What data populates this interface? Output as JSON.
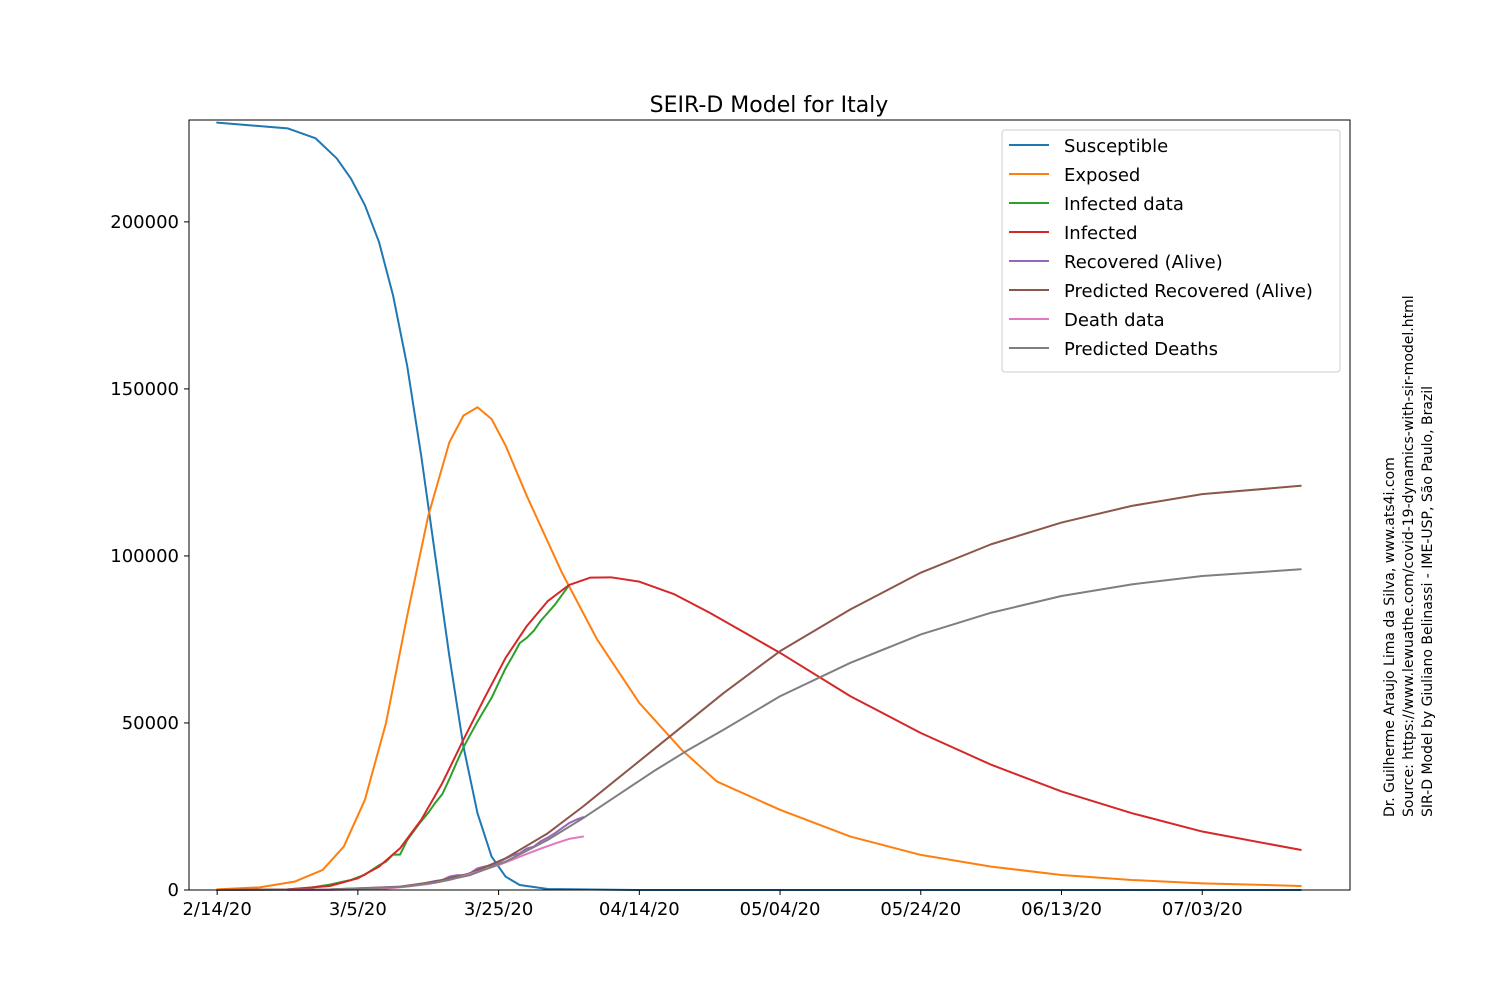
{
  "chart_data": {
    "type": "line",
    "title": "SEIR-D Model for Italy",
    "xlabel": "",
    "ylabel": "",
    "x_start": "2020-02-14",
    "x_end": "2020-07-17",
    "xlim": [
      "2020-02-10",
      "2020-07-24"
    ],
    "ylim": [
      0,
      230500
    ],
    "x_ticks": [
      {
        "date": "2020-02-14",
        "label": "2/14/20"
      },
      {
        "date": "2020-03-05",
        "label": "3/5/20"
      },
      {
        "date": "2020-03-25",
        "label": "3/25/20"
      },
      {
        "date": "2020-04-14",
        "label": "04/14/20"
      },
      {
        "date": "2020-05-04",
        "label": "05/04/20"
      },
      {
        "date": "2020-05-24",
        "label": "05/24/20"
      },
      {
        "date": "2020-06-13",
        "label": "06/13/20"
      },
      {
        "date": "2020-07-03",
        "label": "07/03/20"
      }
    ],
    "y_ticks": [
      {
        "value": 0,
        "label": "0"
      },
      {
        "value": 50000,
        "label": "50000"
      },
      {
        "value": 100000,
        "label": "100000"
      },
      {
        "value": 150000,
        "label": "150000"
      },
      {
        "value": 200000,
        "label": "200000"
      }
    ],
    "grid": false,
    "legend_position": "top-right",
    "series": [
      {
        "name": "Susceptible",
        "color": "#1f77b4",
        "points": [
          [
            "2020-02-14",
            229700
          ],
          [
            "2020-02-24",
            228000
          ],
          [
            "2020-02-28",
            225000
          ],
          [
            "2020-03-02",
            219000
          ],
          [
            "2020-03-04",
            213000
          ],
          [
            "2020-03-06",
            205000
          ],
          [
            "2020-03-08",
            194000
          ],
          [
            "2020-03-10",
            178000
          ],
          [
            "2020-03-12",
            157000
          ],
          [
            "2020-03-14",
            130000
          ],
          [
            "2020-03-16",
            100000
          ],
          [
            "2020-03-18",
            70000
          ],
          [
            "2020-03-20",
            43000
          ],
          [
            "2020-03-22",
            23000
          ],
          [
            "2020-03-24",
            10000
          ],
          [
            "2020-03-26",
            4000
          ],
          [
            "2020-03-28",
            1500
          ],
          [
            "2020-04-01",
            300
          ],
          [
            "2020-04-14",
            0
          ],
          [
            "2020-07-17",
            0
          ]
        ]
      },
      {
        "name": "Exposed",
        "color": "#ff7f0e",
        "points": [
          [
            "2020-02-14",
            200
          ],
          [
            "2020-02-20",
            800
          ],
          [
            "2020-02-25",
            2500
          ],
          [
            "2020-02-29",
            6000
          ],
          [
            "2020-03-03",
            13000
          ],
          [
            "2020-03-06",
            27000
          ],
          [
            "2020-03-09",
            50000
          ],
          [
            "2020-03-12",
            82000
          ],
          [
            "2020-03-15",
            112000
          ],
          [
            "2020-03-18",
            134000
          ],
          [
            "2020-03-20",
            142000
          ],
          [
            "2020-03-22",
            144500
          ],
          [
            "2020-03-24",
            141000
          ],
          [
            "2020-03-26",
            133000
          ],
          [
            "2020-03-29",
            118000
          ],
          [
            "2020-04-03",
            95000
          ],
          [
            "2020-04-08",
            75000
          ],
          [
            "2020-04-14",
            56000
          ],
          [
            "2020-04-20",
            42000
          ],
          [
            "2020-04-25",
            32500
          ],
          [
            "2020-05-04",
            24000
          ],
          [
            "2020-05-14",
            16000
          ],
          [
            "2020-05-24",
            10500
          ],
          [
            "2020-06-03",
            7000
          ],
          [
            "2020-06-13",
            4500
          ],
          [
            "2020-06-23",
            3000
          ],
          [
            "2020-07-03",
            2000
          ],
          [
            "2020-07-17",
            1200
          ]
        ]
      },
      {
        "name": "Infected data",
        "color": "#2ca02c",
        "points": [
          [
            "2020-02-24",
            200
          ],
          [
            "2020-02-27",
            600
          ],
          [
            "2020-03-01",
            1600
          ],
          [
            "2020-03-04",
            3000
          ],
          [
            "2020-03-06",
            4600
          ],
          [
            "2020-03-08",
            7400
          ],
          [
            "2020-03-09",
            8500
          ],
          [
            "2020-03-10",
            10600
          ],
          [
            "2020-03-11",
            10600
          ],
          [
            "2020-03-12",
            14900
          ],
          [
            "2020-03-13",
            17800
          ],
          [
            "2020-03-14",
            20600
          ],
          [
            "2020-03-15",
            23100
          ],
          [
            "2020-03-16",
            26100
          ],
          [
            "2020-03-17",
            28700
          ],
          [
            "2020-03-18",
            33200
          ],
          [
            "2020-03-19",
            38000
          ],
          [
            "2020-03-20",
            42700
          ],
          [
            "2020-03-21",
            46600
          ],
          [
            "2020-03-22",
            50400
          ],
          [
            "2020-03-23",
            54000
          ],
          [
            "2020-03-24",
            57500
          ],
          [
            "2020-03-25",
            62000
          ],
          [
            "2020-03-26",
            66400
          ],
          [
            "2020-03-27",
            70000
          ],
          [
            "2020-03-28",
            73900
          ],
          [
            "2020-03-29",
            75500
          ],
          [
            "2020-03-30",
            77600
          ],
          [
            "2020-03-31",
            80600
          ],
          [
            "2020-04-01",
            83000
          ],
          [
            "2020-04-02",
            85400
          ],
          [
            "2020-04-03",
            88300
          ],
          [
            "2020-04-04",
            91200
          ]
        ]
      },
      {
        "name": "Infected",
        "color": "#d62728",
        "points": [
          [
            "2020-02-14",
            0
          ],
          [
            "2020-02-24",
            200
          ],
          [
            "2020-03-01",
            1200
          ],
          [
            "2020-03-05",
            3500
          ],
          [
            "2020-03-08",
            7000
          ],
          [
            "2020-03-11",
            12500
          ],
          [
            "2020-03-14",
            21000
          ],
          [
            "2020-03-17",
            32000
          ],
          [
            "2020-03-20",
            45000
          ],
          [
            "2020-03-23",
            57500
          ],
          [
            "2020-03-26",
            69500
          ],
          [
            "2020-03-29",
            79000
          ],
          [
            "2020-04-01",
            86500
          ],
          [
            "2020-04-04",
            91300
          ],
          [
            "2020-04-07",
            93500
          ],
          [
            "2020-04-10",
            93600
          ],
          [
            "2020-04-14",
            92300
          ],
          [
            "2020-04-19",
            88500
          ],
          [
            "2020-04-24",
            83000
          ],
          [
            "2020-04-29",
            77000
          ],
          [
            "2020-05-04",
            71000
          ],
          [
            "2020-05-14",
            58000
          ],
          [
            "2020-05-24",
            47000
          ],
          [
            "2020-06-03",
            37500
          ],
          [
            "2020-06-13",
            29500
          ],
          [
            "2020-06-23",
            23000
          ],
          [
            "2020-07-03",
            17500
          ],
          [
            "2020-07-17",
            12000
          ]
        ]
      },
      {
        "name": "Recovered (Alive)",
        "color": "#9467bd",
        "points": [
          [
            "2020-02-24",
            0
          ],
          [
            "2020-03-01",
            80
          ],
          [
            "2020-03-05",
            400
          ],
          [
            "2020-03-09",
            700
          ],
          [
            "2020-03-12",
            1100
          ],
          [
            "2020-03-14",
            1800
          ],
          [
            "2020-03-16",
            2700
          ],
          [
            "2020-03-17",
            3000
          ],
          [
            "2020-03-18",
            4000
          ],
          [
            "2020-03-19",
            4400
          ],
          [
            "2020-03-20",
            4400
          ],
          [
            "2020-03-21",
            5100
          ],
          [
            "2020-03-22",
            6500
          ],
          [
            "2020-03-23",
            7000
          ],
          [
            "2020-03-24",
            7400
          ],
          [
            "2020-03-25",
            8300
          ],
          [
            "2020-03-26",
            9400
          ],
          [
            "2020-03-27",
            10400
          ],
          [
            "2020-03-28",
            11000
          ],
          [
            "2020-03-29",
            12400
          ],
          [
            "2020-03-30",
            13000
          ],
          [
            "2020-03-31",
            14600
          ],
          [
            "2020-04-01",
            15700
          ],
          [
            "2020-04-02",
            17000
          ],
          [
            "2020-04-03",
            18500
          ],
          [
            "2020-04-04",
            20000
          ],
          [
            "2020-04-05",
            21000
          ],
          [
            "2020-04-06",
            21800
          ]
        ]
      },
      {
        "name": "Predicted Recovered (Alive)",
        "color": "#8c564b",
        "points": [
          [
            "2020-02-14",
            0
          ],
          [
            "2020-03-01",
            200
          ],
          [
            "2020-03-11",
            1000
          ],
          [
            "2020-03-16",
            2500
          ],
          [
            "2020-03-21",
            5000
          ],
          [
            "2020-03-26",
            9500
          ],
          [
            "2020-04-01",
            17000
          ],
          [
            "2020-04-06",
            25000
          ],
          [
            "2020-04-11",
            33500
          ],
          [
            "2020-04-16",
            42000
          ],
          [
            "2020-04-21",
            50500
          ],
          [
            "2020-04-26",
            59000
          ],
          [
            "2020-05-04",
            71500
          ],
          [
            "2020-05-14",
            84000
          ],
          [
            "2020-05-24",
            95000
          ],
          [
            "2020-06-03",
            103500
          ],
          [
            "2020-06-13",
            110000
          ],
          [
            "2020-06-23",
            115000
          ],
          [
            "2020-07-03",
            118500
          ],
          [
            "2020-07-17",
            121000
          ]
        ]
      },
      {
        "name": "Death data",
        "color": "#e377c2",
        "points": [
          [
            "2020-02-24",
            0
          ],
          [
            "2020-03-01",
            30
          ],
          [
            "2020-03-05",
            150
          ],
          [
            "2020-03-09",
            460
          ],
          [
            "2020-03-12",
            1000
          ],
          [
            "2020-03-15",
            1800
          ],
          [
            "2020-03-18",
            3000
          ],
          [
            "2020-03-21",
            4800
          ],
          [
            "2020-03-23",
            6100
          ],
          [
            "2020-03-25",
            7500
          ],
          [
            "2020-03-27",
            9100
          ],
          [
            "2020-03-29",
            10800
          ],
          [
            "2020-03-31",
            12400
          ],
          [
            "2020-04-02",
            13900
          ],
          [
            "2020-04-04",
            15300
          ],
          [
            "2020-04-06",
            16000
          ]
        ]
      },
      {
        "name": "Predicted Deaths",
        "color": "#7f7f7f",
        "points": [
          [
            "2020-02-14",
            0
          ],
          [
            "2020-03-01",
            150
          ],
          [
            "2020-03-11",
            900
          ],
          [
            "2020-03-16",
            2200
          ],
          [
            "2020-03-21",
            4500
          ],
          [
            "2020-03-26",
            8500
          ],
          [
            "2020-04-01",
            15000
          ],
          [
            "2020-04-06",
            21500
          ],
          [
            "2020-04-11",
            28500
          ],
          [
            "2020-04-16",
            35500
          ],
          [
            "2020-04-21",
            42000
          ],
          [
            "2020-04-26",
            48000
          ],
          [
            "2020-05-04",
            58000
          ],
          [
            "2020-05-14",
            68000
          ],
          [
            "2020-05-24",
            76500
          ],
          [
            "2020-06-03",
            83000
          ],
          [
            "2020-06-13",
            88000
          ],
          [
            "2020-06-23",
            91500
          ],
          [
            "2020-07-03",
            94000
          ],
          [
            "2020-07-17",
            96000
          ]
        ]
      }
    ],
    "annotations": [
      "Dr. Guilherme Araujo Lima da Silva, www.ats4i.com",
      "Source: https://www.lewuathe.com/covid-19-dynamics-with-sir-model.html",
      "SIR-D Model by Giuliano Belinassi - IME-USP, São Paulo, Brazil"
    ]
  }
}
